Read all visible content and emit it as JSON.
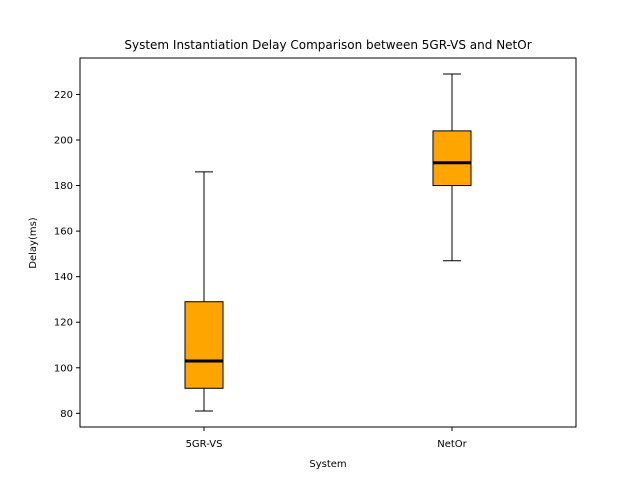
{
  "chart_data": {
    "type": "box",
    "title": "System Instantiation Delay Comparison between 5GR-VS and NetOr",
    "xlabel": "System",
    "ylabel": "Delay(ms)",
    "categories": [
      "5GR-VS",
      "NetOr"
    ],
    "boxes": [
      {
        "label": "5GR-VS",
        "whisker_low": 81,
        "q1": 91,
        "median": 103,
        "q3": 129,
        "whisker_high": 186
      },
      {
        "label": "NetOr",
        "whisker_low": 147,
        "q1": 180,
        "median": 190,
        "q3": 204,
        "whisker_high": 229
      }
    ],
    "ylim": [
      74,
      236
    ],
    "yticks": [
      80,
      100,
      120,
      140,
      160,
      180,
      200,
      220
    ],
    "box_color": "#ffa500",
    "median_color": "#000000",
    "grid": false
  }
}
